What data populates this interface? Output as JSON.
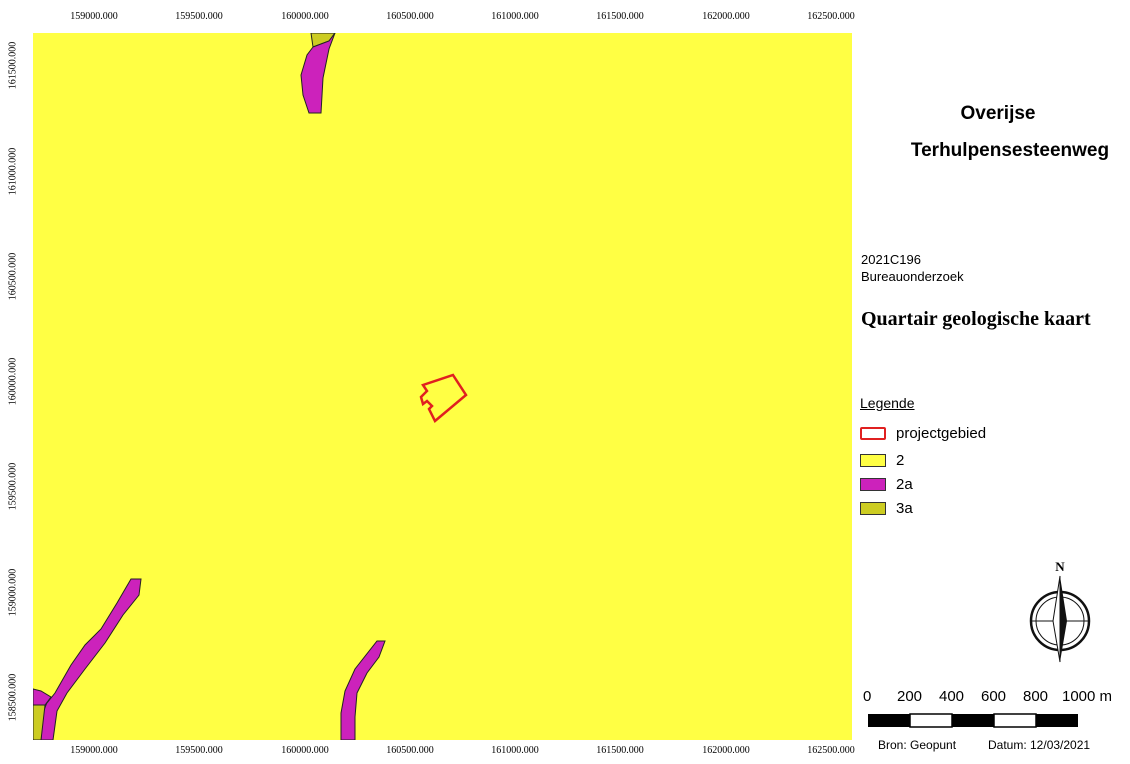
{
  "map": {
    "title_line1": "Overijse",
    "title_line2": "Terhulpensesteenweg",
    "project_code": "2021C196",
    "study_type": "Bureauonderzoek",
    "map_subtitle": "Quartair geologische kaart",
    "x_ticks": [
      "159000.000",
      "159500.000",
      "160000.000",
      "160500.000",
      "161000.000",
      "161500.000",
      "162000.000",
      "162500.000"
    ],
    "y_ticks": [
      "161500.000",
      "161000.000",
      "160500.000",
      "160000.000",
      "159500.000",
      "159000.000",
      "158500.000"
    ],
    "colors": {
      "unit_2": "#ffff44",
      "unit_2a": "#cc22bb",
      "unit_3a": "#cccc22",
      "project": "#e02020"
    }
  },
  "legend": {
    "title": "Legende",
    "items": [
      {
        "label": "projectgebied",
        "type": "outline",
        "color": "#e02020"
      },
      {
        "label": "2",
        "type": "fill",
        "color": "#ffff44"
      },
      {
        "label": "2a",
        "type": "fill",
        "color": "#cc22bb"
      },
      {
        "label": "3a",
        "type": "fill",
        "color": "#cccc22"
      }
    ]
  },
  "north_arrow": {
    "label": "N",
    "icon": "north-arrow-icon"
  },
  "scale_bar": {
    "labels": [
      "0",
      "200",
      "400",
      "600",
      "800",
      "1000 m"
    ]
  },
  "footer": {
    "source": "Bron: Geopunt",
    "date": "Datum: 12/03/2021"
  }
}
